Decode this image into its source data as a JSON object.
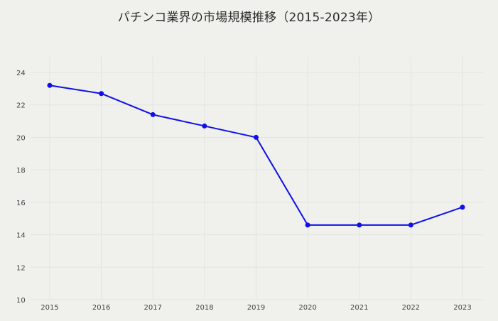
{
  "chart_data": {
    "type": "line",
    "title": "パチンコ業界の市場規模推移（2015-2023年）",
    "xlabel": "",
    "ylabel": "",
    "x": [
      "2015",
      "2016",
      "2017",
      "2018",
      "2019",
      "2020",
      "2021",
      "2022",
      "2023"
    ],
    "series": [
      {
        "values": [
          23.2,
          22.7,
          21.4,
          20.7,
          20.0,
          14.6,
          14.6,
          14.6,
          15.7
        ]
      }
    ],
    "ylim": [
      10,
      24
    ],
    "yticks": [
      10,
      12,
      14,
      16,
      18,
      20,
      22,
      24
    ],
    "grid": true,
    "line_color": "#1010e8"
  }
}
